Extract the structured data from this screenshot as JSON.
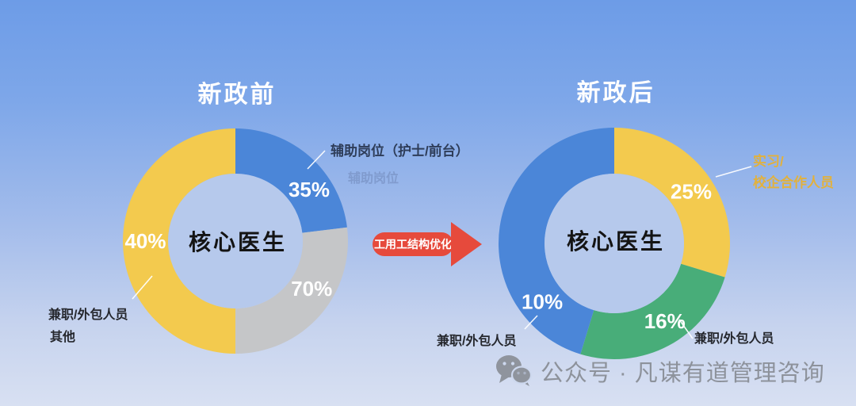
{
  "arrow": {
    "label": "工用工结构优化",
    "color": "#e64a3c"
  },
  "watermark": {
    "icon": "wechat-icon",
    "text": "公众号 · 凡谋有道管理咨询"
  },
  "chart_data": [
    {
      "type": "donut",
      "title": "新政前",
      "center_label": "核心医生",
      "unit": "%",
      "legend_position": "callouts",
      "segments": [
        {
          "label": "辅助岗位（护士/前台）",
          "value": 35,
          "value_label": "35%",
          "color": "#4b86d8",
          "start_angle": 0,
          "end_angle": 83,
          "label_angle": 55
        },
        {
          "label": "其他",
          "value": 70,
          "value_label": "70%",
          "color": "#c5c6c8",
          "start_angle": 83,
          "end_angle": 180,
          "label_angle": 122
        },
        {
          "label": "兼职/外包人员",
          "value": 40,
          "value_label": "40%",
          "color": "#f3ca4e",
          "start_angle": 180,
          "end_angle": 360,
          "label_angle": 270
        }
      ],
      "callouts": {
        "aux_main": "辅助岗位（护士/前台）",
        "aux_ghost": "辅助岗位",
        "outsource": "兼职/外包人员",
        "other": "其他"
      }
    },
    {
      "type": "donut",
      "title": "新政后",
      "center_label": "核心医生",
      "unit": "%",
      "legend_position": "callouts",
      "segments": [
        {
          "label": "实习/校企合作人员",
          "value": 25,
          "value_label": "25%",
          "color": "#f3ca4e",
          "start_angle": 0,
          "end_angle": 107,
          "label_angle": 56
        },
        {
          "label": "兼职/外包人员",
          "value": 16,
          "value_label": "16%",
          "color": "#48ad79",
          "start_angle": 107,
          "end_angle": 197,
          "label_angle": 147
        },
        {
          "label": "兼职/外包人员",
          "value": 10,
          "value_label": "10%",
          "color": "#4b86d8",
          "start_angle": 197,
          "end_angle": 360,
          "label_angle": 231
        }
      ],
      "callouts": {
        "intern_line1": "实习/",
        "intern_line2": "校企合作人员",
        "outsource_left": "兼职/外包人员",
        "outsource_right": "兼职/外包人员"
      }
    }
  ]
}
